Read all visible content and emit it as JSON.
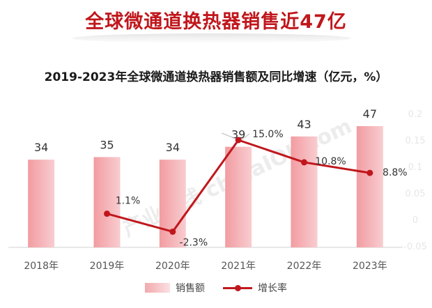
{
  "banner": {
    "title": "全球微通道换热器销售近47亿"
  },
  "chart_title": "2019-2023年全球微通道换热器销售额及同比增速（亿元，%）",
  "watermark": {
    "text": "产业在线 chinaIOL.com"
  },
  "legend": {
    "bar_label": "销售额",
    "line_label": "增长率"
  },
  "colors": {
    "bar": "#f2a9ad",
    "line": "#c0171c",
    "title": "#c0171c"
  },
  "chart_data": {
    "type": "bar+line",
    "categories": [
      "2018年",
      "2019年",
      "2020年",
      "2021年",
      "2022年",
      "2023年"
    ],
    "bar_labels": [
      "34",
      "35",
      "34",
      "39",
      "43",
      "47"
    ],
    "series": [
      {
        "name": "销售额",
        "type": "bar",
        "axis": "left",
        "values": [
          34,
          35,
          34,
          39,
          43,
          47
        ]
      },
      {
        "name": "增长率",
        "type": "line",
        "axis": "right",
        "values": [
          null,
          0.011,
          -0.023,
          0.15,
          0.108,
          0.088
        ],
        "labels": [
          "",
          "1.1%",
          "-2.3%",
          "15.0%",
          "10.8%",
          "8.8%"
        ]
      }
    ],
    "y_left_range": [
      0,
      47
    ],
    "y_right_range": [
      -0.05,
      0.2
    ],
    "y_right_ticks": [
      "-0.05",
      "0",
      "0.05",
      "0.1",
      "0.15",
      "0.2"
    ],
    "legend_position": "bottom"
  }
}
